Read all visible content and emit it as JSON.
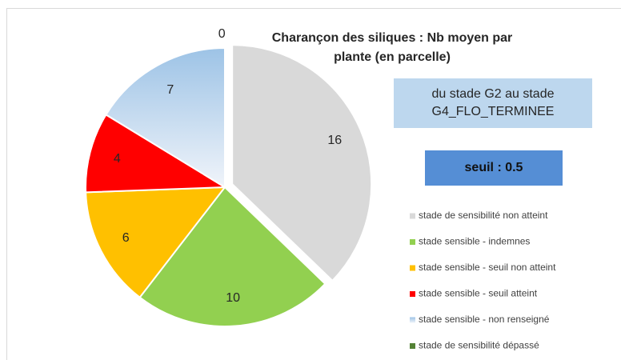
{
  "chart_data": {
    "type": "pie",
    "title": "Charançon des siliques : Nb moyen par plante (en parcelle)",
    "annotations": [
      "du stade G2 au stade G4_FLO_TERMINEE",
      "seuil : 0.5"
    ],
    "categories": [
      "stade de sensibilité non atteint",
      "stade sensible - indemnes",
      "stade sensible - seuil non atteint",
      "stade sensible - seuil atteint",
      "stade sensible - non renseigné",
      "stade de sensibilité dépassé"
    ],
    "values": [
      16,
      10,
      6,
      4,
      7,
      0
    ],
    "colors": [
      "#d9d9d9",
      "#92d050",
      "#ffc000",
      "#ff0000",
      "#9dc3e6",
      "#548235"
    ],
    "legend": "right"
  }
}
